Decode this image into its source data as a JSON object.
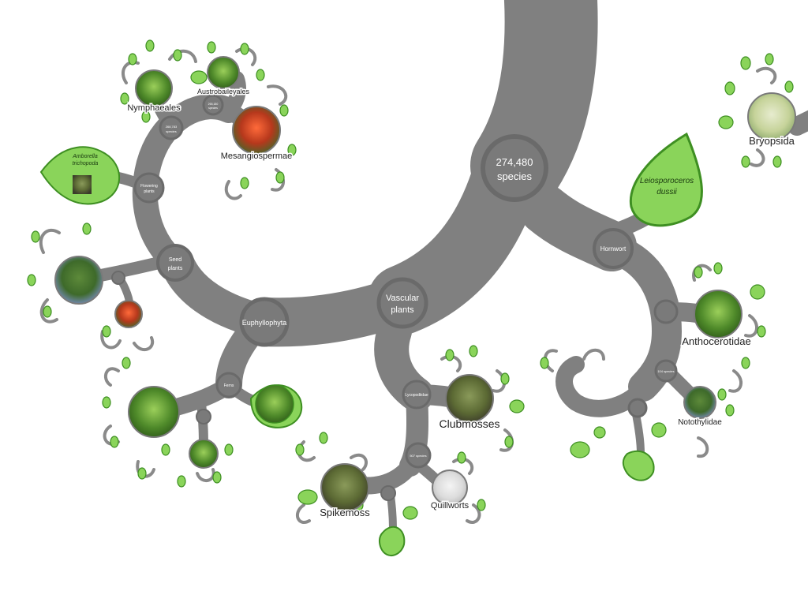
{
  "root": {
    "count": "274,480",
    "unit": "species"
  },
  "nodes": {
    "vascular": [
      "Vascular",
      "plants"
    ],
    "euphyllophyta": "Euphyllophyta",
    "seed": [
      "Seed",
      "plants"
    ],
    "flowering": [
      "Flowering",
      "plants"
    ],
    "flowering_species": [
      "268,783",
      "species"
    ],
    "austro_species": [
      "265,180",
      "species"
    ],
    "hornwort": "Hornwort",
    "ferns": "Ferns",
    "lycopodiidae": "Lycopodiidae",
    "lyco_species": "507 species",
    "hornwort_species": "104 species"
  },
  "clades": {
    "nymphaeales": "Nymphaeales",
    "austrobaileyales": "Austrobaileyales",
    "mesangiospermae": "Mesangiospermae",
    "bryopsida": "Bryopsida",
    "anthocerotidae": "Anthocerotidae",
    "notothylidae": "Notothylidae",
    "clubmosses": "Clubmosses",
    "spikemoss": "Spikemoss",
    "quillworts": "Quillworts"
  },
  "leaves": {
    "amborella": [
      "Amborella",
      "trichopoda"
    ],
    "leiosporoceros": [
      "Leiosporoceros",
      "dussii"
    ]
  },
  "colors": {
    "branch": "#808080",
    "node_fill": "#7a7a7a",
    "node_ring": "#6a6a6a",
    "leaf_fill": "#8ad45a",
    "leaf_stroke": "#3e8f22"
  }
}
